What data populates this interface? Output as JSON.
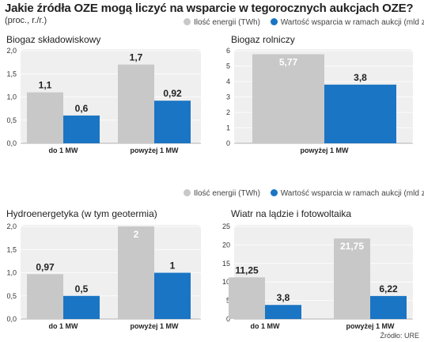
{
  "header": {
    "title": "Jakie źródła OZE mogą liczyć na wsparcie w tegorocznych aukcjach OZE?",
    "subtitle": "(proc., r./r.)"
  },
  "legend": {
    "items": [
      {
        "label": "Ilość energii (TWh)",
        "color": "#c8c8c8"
      },
      {
        "label": "Wartość wsparcia w ramach aukcji (mld zł)",
        "color": "#1a75c4"
      }
    ]
  },
  "source": "Źródło: URE",
  "chart_data": [
    {
      "type": "bar",
      "title": "Biogaz składowiskowy",
      "categories": [
        "do 1 MW",
        "powyżej 1 MW"
      ],
      "series": [
        {
          "name": "Ilość energii (TWh)",
          "values": [
            1.1,
            1.7
          ],
          "labels": [
            "1,1",
            "1,7"
          ]
        },
        {
          "name": "Wartość wsparcia w ramach aukcji (mld zł)",
          "values": [
            0.6,
            0.92
          ],
          "labels": [
            "0,6",
            "0,92"
          ]
        }
      ],
      "ylim": [
        0,
        2
      ],
      "yticks": [
        "0,0",
        "0,5",
        "1,0",
        "1,5",
        "2,0"
      ],
      "ytick_values": [
        0,
        0.5,
        1,
        1.5,
        2
      ]
    },
    {
      "type": "bar",
      "title": "Biogaz rolniczy",
      "categories": [
        "powyżej 1 MW"
      ],
      "series": [
        {
          "name": "Ilość energii (TWh)",
          "values": [
            5.77
          ],
          "labels": [
            "5,77"
          ]
        },
        {
          "name": "Wartość wsparcia w ramach aukcji (mld zł)",
          "values": [
            3.8
          ],
          "labels": [
            "3,8"
          ]
        }
      ],
      "ylim": [
        0,
        6
      ],
      "yticks": [
        "0",
        "1",
        "2",
        "3",
        "4",
        "5",
        "6"
      ],
      "ytick_values": [
        0,
        1,
        2,
        3,
        4,
        5,
        6
      ]
    },
    {
      "type": "bar",
      "title": "Hydroenergetyka (w tym geotermia)",
      "categories": [
        "do 1 MW",
        "powyżej 1 MW"
      ],
      "series": [
        {
          "name": "Ilość energii (TWh)",
          "values": [
            0.97,
            2
          ],
          "labels": [
            "0,97",
            "2"
          ]
        },
        {
          "name": "Wartość wsparcia w ramach aukcji (mld zł)",
          "values": [
            0.5,
            1
          ],
          "labels": [
            "0,5",
            "1"
          ]
        }
      ],
      "ylim": [
        0,
        2
      ],
      "yticks": [
        "0,0",
        "0,5",
        "1,0",
        "1,5",
        "2,0"
      ],
      "ytick_values": [
        0,
        0.5,
        1,
        1.5,
        2
      ]
    },
    {
      "type": "bar",
      "title": "Wiatr na lądzie i fotowoltaika",
      "categories": [
        "do 1 MW",
        "powyżej 1 MW"
      ],
      "series": [
        {
          "name": "Ilość energii (TWh)",
          "values": [
            11.25,
            21.75
          ],
          "labels": [
            "11,25",
            "21,75"
          ]
        },
        {
          "name": "Wartość wsparcia w ramach aukcji (mld zł)",
          "values": [
            3.8,
            6.22
          ],
          "labels": [
            "3,8",
            "6,22"
          ]
        }
      ],
      "ylim": [
        0,
        25
      ],
      "yticks": [
        "0",
        "5",
        "10",
        "15",
        "20",
        "25"
      ],
      "ytick_values": [
        0,
        5,
        10,
        15,
        20,
        25
      ]
    }
  ]
}
